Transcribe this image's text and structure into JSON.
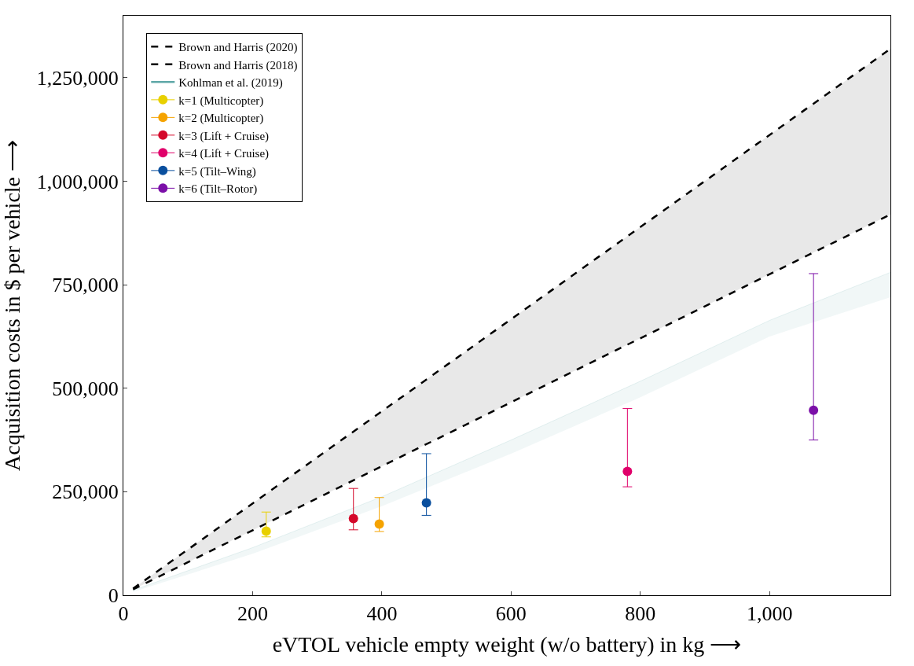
{
  "chart_data": {
    "type": "scatter",
    "xlabel": "eVTOL vehicle empty weight (w/o battery) in kg ⟶",
    "ylabel": "Acquisition costs in $ per vehicle ⟶",
    "xlim": [
      0,
      1187
    ],
    "ylim": [
      0,
      1400000
    ],
    "xticks": [
      0,
      200,
      400,
      600,
      {
        "value": 800,
        "label": "800"
      },
      {
        "value": 1000,
        "label": "1,000"
      }
    ],
    "yticks": [
      0,
      {
        "value": 250000,
        "label": "250,000"
      },
      {
        "value": 500000,
        "label": "500,000"
      },
      {
        "value": 750000,
        "label": "750,000"
      },
      {
        "value": 1000000,
        "label": "1,000,000"
      },
      {
        "value": 1250000,
        "label": "1,250,000"
      }
    ],
    "legend": "top left",
    "marker": "circle",
    "series": [
      {
        "type": "line",
        "name": "Brown and Harris (2020)",
        "color": "#000000",
        "line_style": "dashed",
        "marker": "none",
        "x": [
          15,
          1187
        ],
        "values": [
          16000,
          1320000
        ],
        "lower": [
          14000,
          920000
        ],
        "upper": [
          16000,
          1320000
        ]
      },
      {
        "type": "line",
        "name": "Brown and Harris (2018)",
        "color": "#000000",
        "line_style": "dashed",
        "marker": "none",
        "x": [
          15,
          1187
        ],
        "values": [
          14000,
          920000
        ]
      },
      {
        "type": "line",
        "name": "Kohlman et al. (2019)",
        "color": "#5fa8a8",
        "line_style": "solid",
        "marker": "none",
        "x": [
          15,
          200,
          400,
          600,
          800,
          1000,
          1187
        ],
        "values": [
          12000,
          115000,
          238000,
          375000,
          517000,
          664000,
          780000
        ],
        "lower": [
          8000,
          100000,
          215000,
          342000,
          478000,
          625000,
          720000
        ],
        "upper": [
          12000,
          115000,
          238000,
          375000,
          517000,
          664000,
          780000
        ]
      },
      {
        "name": "k=1 (Multicopter)",
        "color": "#e8d000",
        "x": [
          221
        ],
        "values": [
          155000
        ],
        "errors": [
          [
            141000,
            201000
          ]
        ]
      },
      {
        "name": "k=2 (Multicopter)",
        "color": "#f5a300",
        "x": [
          396
        ],
        "values": [
          172000
        ],
        "errors": [
          [
            154000,
            236000
          ]
        ]
      },
      {
        "name": "k=3 (Lift + Cruise)",
        "color": "#d4082a",
        "x": [
          356
        ],
        "values": [
          185000
        ],
        "errors": [
          [
            158000,
            258000
          ]
        ]
      },
      {
        "name": "k=4 (Lift + Cruise)",
        "color": "#e0006a",
        "x": [
          780
        ],
        "values": [
          299000
        ],
        "errors": [
          [
            262000,
            451000
          ]
        ]
      },
      {
        "name": "k=5 (Tilt–Wing)",
        "color": "#0a4f9e",
        "x": [
          469
        ],
        "values": [
          223000
        ],
        "errors": [
          [
            193000,
            342000
          ]
        ]
      },
      {
        "name": "k=6 (Tilt–Rotor)",
        "color": "#7b0fa8",
        "x": [
          1068
        ],
        "values": [
          447000
        ],
        "errors": [
          [
            375000,
            777000
          ]
        ]
      }
    ]
  }
}
